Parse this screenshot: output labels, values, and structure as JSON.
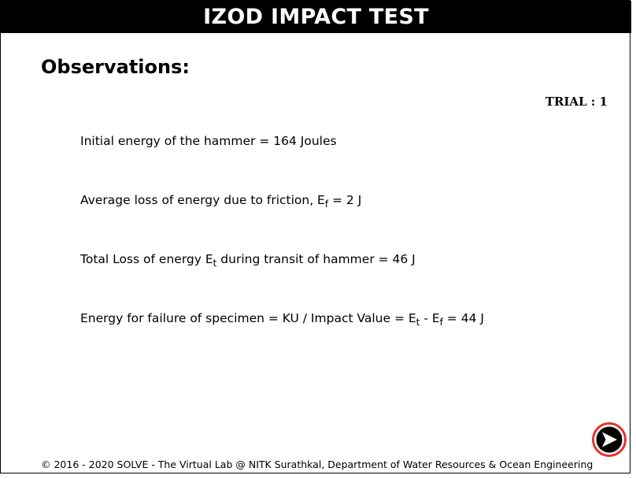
{
  "header": {
    "title": "IZOD IMPACT TEST"
  },
  "main": {
    "heading": "Observations:",
    "trial": "TRIAL : 1",
    "obs1": {
      "text": "Initial energy of the hammer = 164 Joules"
    },
    "obs2": {
      "pre": "Average loss of energy due to friction, E",
      "sub": "f",
      "post": " = 2 J"
    },
    "obs3": {
      "pre": "Total Loss of energy E",
      "sub": "t",
      "post": " during transit of hammer = 46 J"
    },
    "obs4": {
      "pre": "Energy for failure of specimen = KU / Impact Value = E",
      "sub1": "t",
      "mid": " - E",
      "sub2": "f",
      "post": " = 44 J"
    }
  },
  "nav": {
    "next_icon": "next-arrow-icon",
    "accent": "#e3342f"
  },
  "footer": {
    "copyright": "© 2016 - 2020 SOLVE - The Virtual Lab @ NITK Surathkal, Department of Water Resources & Ocean Engineering"
  }
}
